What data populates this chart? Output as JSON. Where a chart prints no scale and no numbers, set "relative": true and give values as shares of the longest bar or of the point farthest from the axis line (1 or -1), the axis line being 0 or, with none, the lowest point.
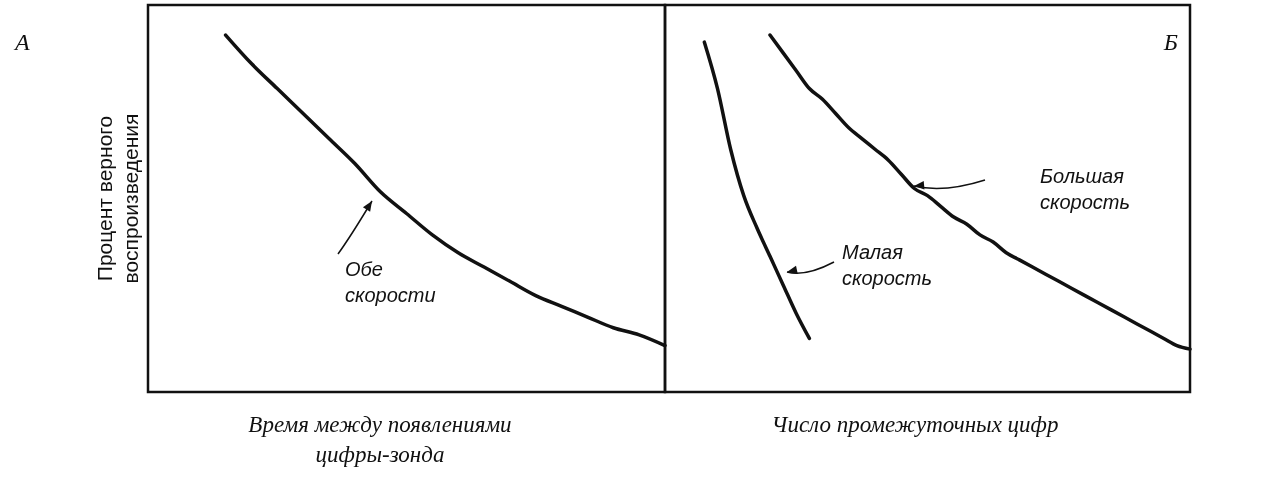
{
  "chart_data": [
    {
      "type": "line",
      "title": "А",
      "xlabel": "Время между появлениями цифры-зонда",
      "ylabel": "Процент верного воспроизведения",
      "relative": true,
      "grid": false,
      "categories": [
        null,
        null,
        null,
        null,
        null,
        null,
        null,
        null,
        null,
        null,
        null,
        null,
        null,
        null,
        null,
        null,
        null,
        null,
        null,
        null,
        null
      ],
      "series": [
        {
          "name": "Обе скорости",
          "color": "#111111",
          "values": [
            null,
            null,
            null,
            1.0,
            0.92,
            0.85,
            0.78,
            0.71,
            0.64,
            0.56,
            0.5,
            0.44,
            0.39,
            0.35,
            0.31,
            0.27,
            0.24,
            0.21,
            0.18,
            0.16,
            0.13
          ]
        }
      ]
    },
    {
      "type": "line",
      "title": "Б",
      "xlabel": "Число промежуточных цифр",
      "relative": true,
      "grid": false,
      "categories": [
        null,
        null,
        null,
        null,
        null,
        null,
        null,
        null,
        null,
        null,
        null,
        null,
        null,
        null,
        null,
        null,
        null,
        null,
        null,
        null,
        null,
        null,
        null,
        null,
        null,
        null,
        null,
        null,
        null,
        null,
        null,
        null,
        null,
        null,
        null,
        null,
        null,
        null,
        null,
        null,
        null
      ],
      "series": [
        {
          "name": "Малая скорость",
          "color": "#111111",
          "values": [
            null,
            null,
            null,
            0.98,
            0.85,
            0.68,
            0.55,
            0.46,
            0.38,
            0.3,
            0.22,
            0.15,
            null,
            null,
            null,
            null,
            null,
            null,
            null,
            null,
            null,
            null,
            null,
            null,
            null,
            null,
            null,
            null,
            null,
            null,
            null,
            null,
            null,
            null,
            null,
            null,
            null,
            null,
            null,
            null,
            null
          ]
        },
        {
          "name": "Большая скорость",
          "color": "#111111",
          "values": [
            null,
            null,
            null,
            null,
            null,
            null,
            null,
            null,
            1.0,
            0.95,
            0.9,
            0.85,
            0.82,
            0.78,
            0.74,
            0.71,
            0.68,
            0.65,
            0.61,
            0.57,
            0.55,
            0.52,
            0.49,
            0.47,
            0.44,
            0.42,
            0.39,
            0.37,
            0.35,
            0.33,
            0.31,
            0.29,
            0.27,
            0.25,
            0.23,
            0.21,
            0.19,
            0.17,
            0.15,
            0.13,
            0.12
          ]
        }
      ]
    }
  ]
}
